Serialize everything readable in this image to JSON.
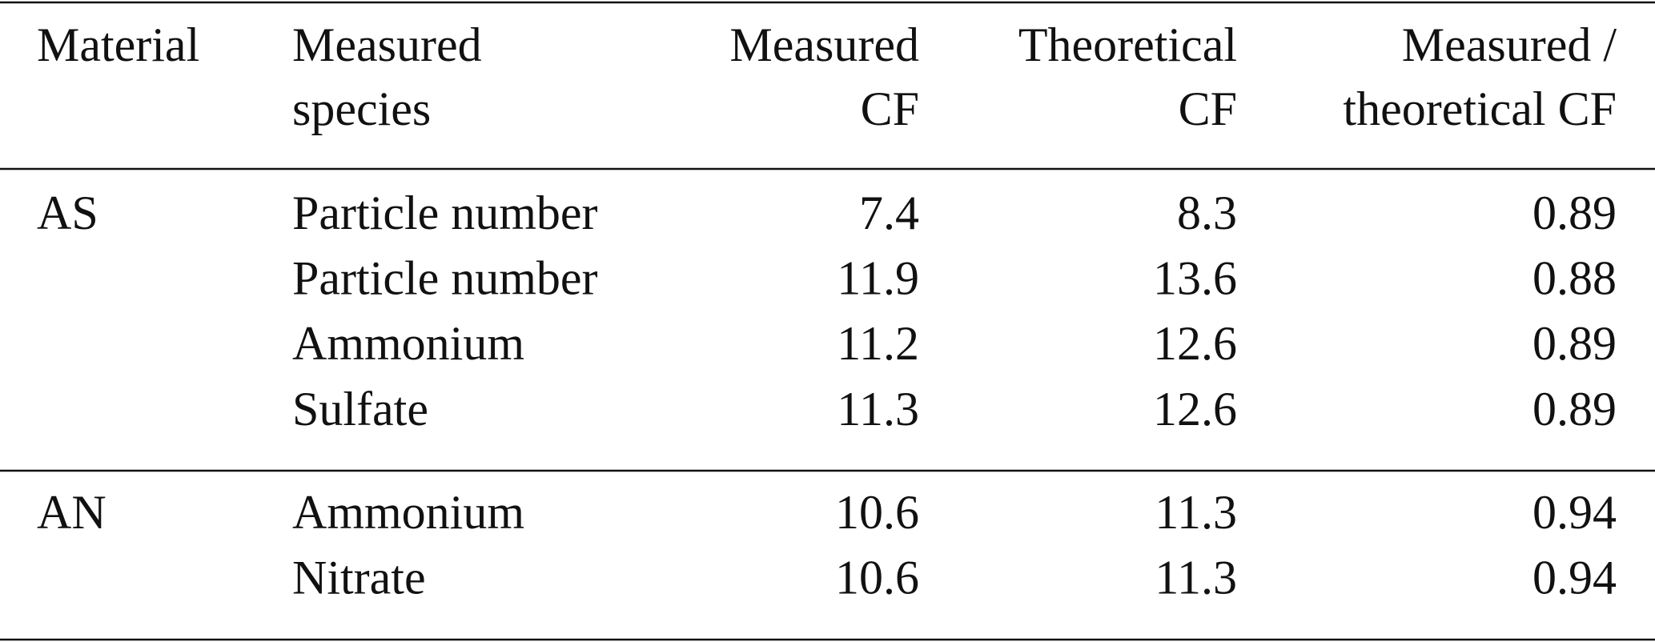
{
  "table": {
    "header": [
      [
        "Material"
      ],
      [
        "Measured",
        "species"
      ],
      [
        "Measured",
        "CF"
      ],
      [
        "Theoretical",
        "CF"
      ],
      [
        "Measured /",
        "theoretical CF"
      ]
    ],
    "groups": [
      {
        "material": "AS",
        "rows": [
          [
            "Particle number",
            7.4,
            8.3,
            0.89
          ],
          [
            "Particle number",
            11.9,
            13.6,
            0.88
          ],
          [
            "Ammonium",
            11.2,
            12.6,
            0.89
          ],
          [
            "Sulfate",
            11.3,
            12.6,
            0.89
          ]
        ]
      },
      {
        "material": "AN",
        "rows": [
          [
            "Ammonium",
            10.6,
            11.3,
            0.94
          ],
          [
            "Nitrate",
            10.6,
            11.3,
            0.94
          ]
        ]
      }
    ]
  }
}
